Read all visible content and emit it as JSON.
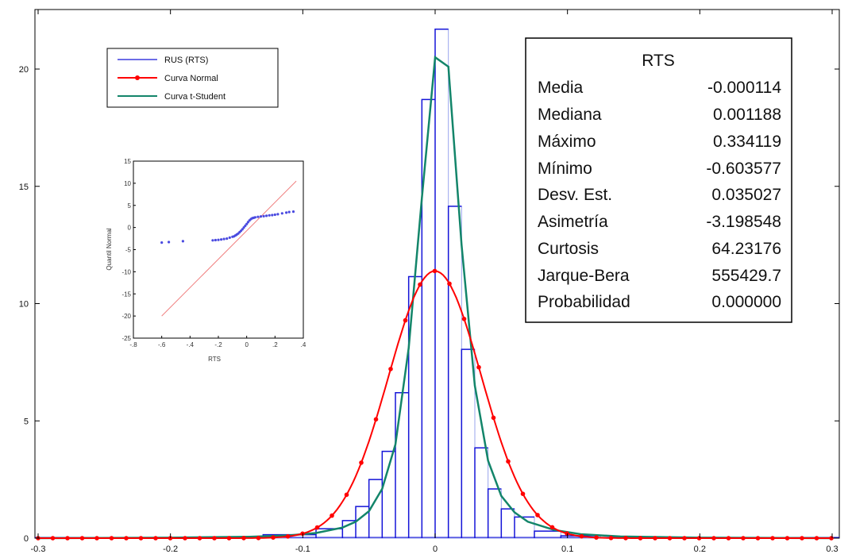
{
  "chart_data": [
    {
      "type": "bar",
      "description_role": "main-histogram",
      "xlim": [
        -0.3,
        0.3
      ],
      "ylim": [
        0,
        22.5
      ],
      "x_ticks": [
        "-0.3",
        "-0.2",
        "-0.1",
        "0",
        "0.1",
        "0.2",
        "0.3"
      ],
      "y_ticks": [
        "0",
        "5",
        "10",
        "15",
        "20"
      ],
      "legend": {
        "placement": "top-left",
        "entries": [
          "RUS (RTS)",
          "Curva Normal",
          "Curva t-Student"
        ]
      },
      "histogram": {
        "name": "RUS (RTS)",
        "bins": [
          {
            "x0": -0.13,
            "x1": -0.09,
            "value": 0.15
          },
          {
            "x0": -0.09,
            "x1": -0.07,
            "value": 0.4
          },
          {
            "x0": -0.07,
            "x1": -0.06,
            "value": 0.75
          },
          {
            "x0": -0.06,
            "x1": -0.05,
            "value": 1.35
          },
          {
            "x0": -0.05,
            "x1": -0.04,
            "value": 2.5
          },
          {
            "x0": -0.04,
            "x1": -0.03,
            "value": 3.7
          },
          {
            "x0": -0.03,
            "x1": -0.02,
            "value": 6.2
          },
          {
            "x0": -0.02,
            "x1": -0.01,
            "value": 11.15
          },
          {
            "x0": -0.01,
            "x1": 0.0,
            "value": 18.7
          },
          {
            "x0": 0.0,
            "x1": 0.01,
            "value": 21.7
          },
          {
            "x0": 0.01,
            "x1": 0.02,
            "value": 14.15
          },
          {
            "x0": 0.02,
            "x1": 0.03,
            "value": 8.05
          },
          {
            "x0": 0.03,
            "x1": 0.04,
            "value": 3.85
          },
          {
            "x0": 0.04,
            "x1": 0.05,
            "value": 2.1
          },
          {
            "x0": 0.05,
            "x1": 0.06,
            "value": 1.25
          },
          {
            "x0": 0.06,
            "x1": 0.075,
            "value": 0.9
          },
          {
            "x0": 0.075,
            "x1": 0.095,
            "value": 0.3
          },
          {
            "x0": 0.095,
            "x1": 0.125,
            "value": 0.1
          }
        ]
      },
      "normal_curve": {
        "name": "Curva Normal",
        "color": "#ff0000",
        "mean": -0.000114,
        "sd": 0.035027,
        "x_min": -0.3,
        "x_max": 0.3,
        "marker_step": 0.0111
      },
      "t_curve": {
        "name": "Curva t-Student",
        "color": "#13856a",
        "x": [
          -0.3,
          -0.2,
          -0.14,
          -0.11,
          -0.09,
          -0.07,
          -0.06,
          -0.05,
          -0.04,
          -0.03,
          -0.02,
          -0.01,
          0.0,
          0.01,
          0.02,
          0.03,
          0.04,
          0.05,
          0.06,
          0.07,
          0.09,
          0.11,
          0.14,
          0.2,
          0.3
        ],
        "y": [
          0.0,
          0.02,
          0.06,
          0.12,
          0.22,
          0.45,
          0.7,
          1.15,
          2.1,
          4.0,
          8.1,
          14.5,
          20.5,
          20.1,
          12.5,
          6.5,
          3.3,
          1.8,
          1.1,
          0.7,
          0.35,
          0.17,
          0.07,
          0.02,
          0.0
        ]
      }
    },
    {
      "type": "scatter",
      "description_role": "inset-qq-plot",
      "xlabel": "RTS",
      "ylabel": "Quantil Normal",
      "xlim": [
        -0.8,
        0.4
      ],
      "ylim": [
        -25,
        15
      ],
      "x_ticks": [
        "-.8",
        "-.6",
        "-.4",
        "-.2",
        "0",
        ".2",
        ".4"
      ],
      "y_ticks": [
        "15",
        "10",
        "5",
        "0",
        "-5",
        "-10",
        "-15",
        "-20",
        "-25"
      ],
      "reference_line": {
        "x": [
          -0.6,
          0.35
        ],
        "y": [
          -20,
          10.5
        ]
      },
      "points": {
        "x": [
          -0.6,
          -0.55,
          -0.45,
          -0.24,
          -0.22,
          -0.2,
          -0.18,
          -0.16,
          -0.14,
          -0.12,
          -0.1,
          -0.09,
          -0.08,
          -0.07,
          -0.06,
          -0.05,
          -0.04,
          -0.03,
          -0.02,
          -0.01,
          0.0,
          0.01,
          0.02,
          0.03,
          0.04,
          0.05,
          0.06,
          0.08,
          0.1,
          0.12,
          0.14,
          0.16,
          0.18,
          0.2,
          0.22,
          0.25,
          0.28,
          0.3,
          0.33
        ],
        "y": [
          -3.4,
          -3.3,
          -3.1,
          -2.9,
          -2.85,
          -2.8,
          -2.7,
          -2.6,
          -2.5,
          -2.3,
          -2.1,
          -2.0,
          -1.8,
          -1.6,
          -1.35,
          -1.05,
          -0.75,
          -0.4,
          0.0,
          0.4,
          0.8,
          1.2,
          1.6,
          1.9,
          2.1,
          2.2,
          2.3,
          2.4,
          2.5,
          2.55,
          2.65,
          2.75,
          2.8,
          2.9,
          3.0,
          3.2,
          3.35,
          3.5,
          3.6
        ]
      }
    }
  ],
  "stats_box": {
    "title": "RTS",
    "rows": [
      {
        "label": "Media",
        "value": "-0.000114"
      },
      {
        "label": "Mediana",
        "value": "0.001188"
      },
      {
        "label": "Máximo",
        "value": "0.334119"
      },
      {
        "label": "Mínimo",
        "value": "-0.603577"
      },
      {
        "label": "Desv. Est.",
        "value": "0.035027"
      },
      {
        "label": "Asimetría",
        "value": "-3.198548"
      },
      {
        "label": "Curtosis",
        "value": "64.23176"
      },
      {
        "label": "Jarque-Bera",
        "value": "555429.7"
      },
      {
        "label": "Probabilidad",
        "value": "0.000000"
      }
    ]
  },
  "colors": {
    "histogram": "#1515d8",
    "histogram_light": "#9aa5ee",
    "normal": "#ff0000",
    "t_student": "#13856a",
    "qq_points": "#4a4ae0",
    "qq_line": "#f08080"
  }
}
